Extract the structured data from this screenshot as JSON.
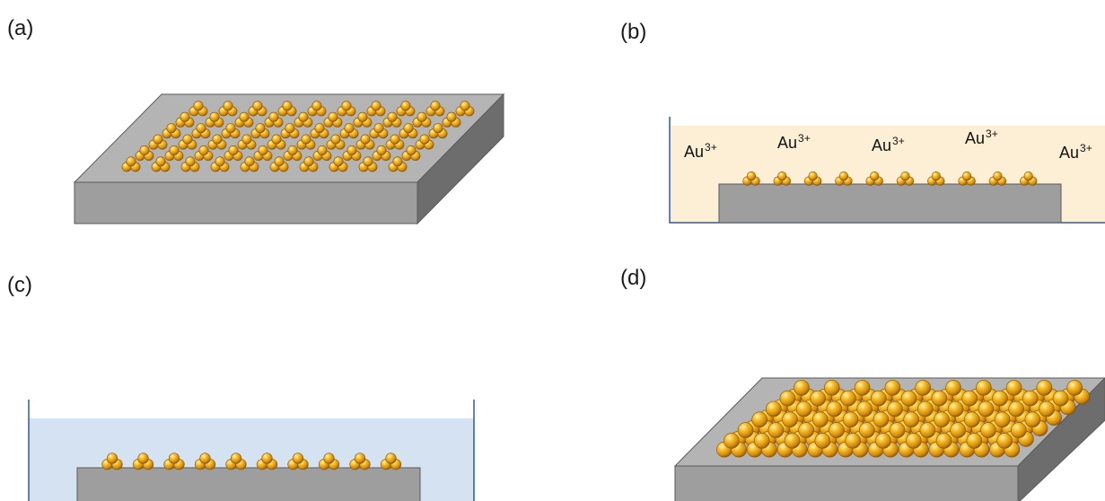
{
  "panels": {
    "a": {
      "label": "(a)"
    },
    "b": {
      "label": "(b)",
      "ions": [
        "Au",
        "Au",
        "Au",
        "Au",
        "Au"
      ],
      "charge": "3+"
    },
    "c": {
      "label": "(c)"
    },
    "d": {
      "label": "(d)"
    }
  },
  "colors": {
    "substrate_top": "#b4b4b4",
    "substrate_front": "#9e9e9e",
    "substrate_side": "#6d6d6d",
    "gold": "#e09a10",
    "solution_b": "#fdefd5",
    "solution_c": "#d5e2f2",
    "beaker_line": "#2f5aa6"
  },
  "particle_counts": {
    "a_grid": [
      10,
      6
    ],
    "b_row": 10,
    "c_row": 10,
    "d_grid": [
      10,
      6
    ]
  }
}
